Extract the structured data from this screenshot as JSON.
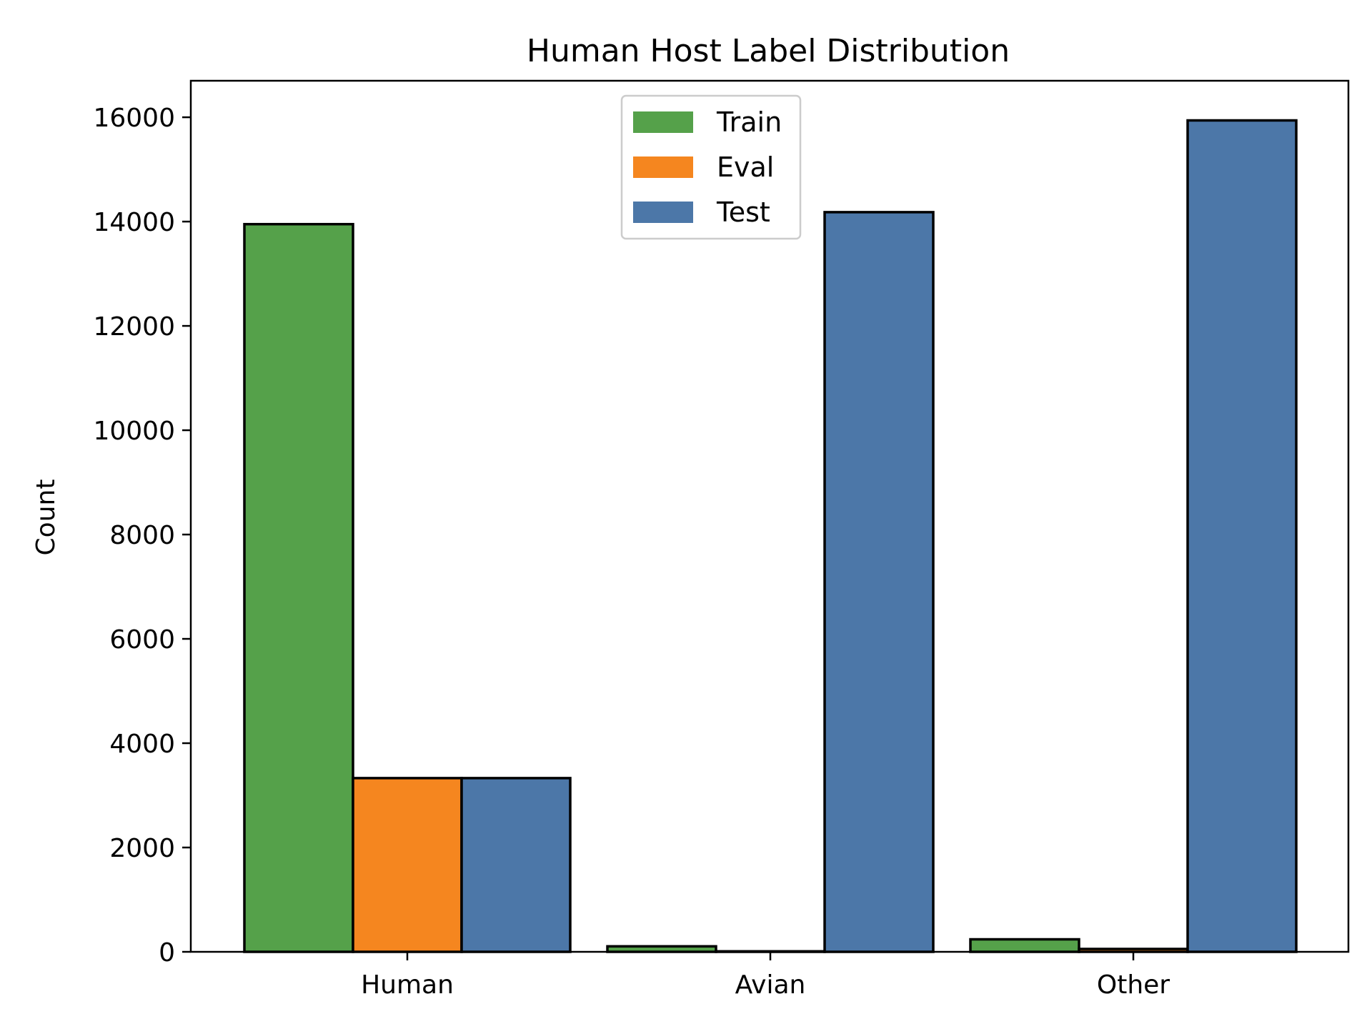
{
  "chart_data": {
    "type": "bar",
    "title": "Human Host Label Distribution",
    "xlabel": "",
    "ylabel": "Count",
    "categories": [
      "Human",
      "Avian",
      "Other"
    ],
    "series": [
      {
        "name": "Train",
        "color": "#55a14a",
        "values": [
          13950,
          105,
          240
        ]
      },
      {
        "name": "Eval",
        "color": "#f5861f",
        "values": [
          3330,
          10,
          55
        ]
      },
      {
        "name": "Test",
        "color": "#4c77a8",
        "values": [
          3330,
          14180,
          15940
        ]
      }
    ],
    "ylim": [
      0,
      16700
    ],
    "yticks": [
      0,
      2000,
      4000,
      6000,
      8000,
      10000,
      12000,
      14000,
      16000
    ],
    "grid": false,
    "legend_position": "top-center"
  }
}
